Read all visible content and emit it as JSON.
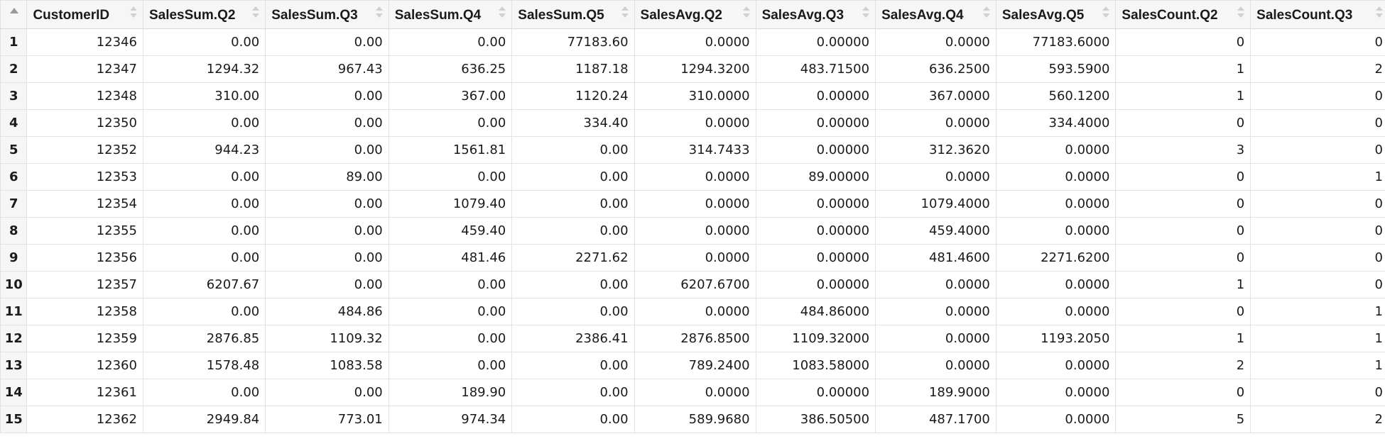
{
  "columns": [
    "CustomerID",
    "SalesSum.Q2",
    "SalesSum.Q3",
    "SalesSum.Q4",
    "SalesSum.Q5",
    "SalesAvg.Q2",
    "SalesAvg.Q3",
    "SalesAvg.Q4",
    "SalesAvg.Q5",
    "SalesCount.Q2",
    "SalesCount.Q3"
  ],
  "rows": [
    {
      "n": "1",
      "cells": [
        "12346",
        "0.00",
        "0.00",
        "0.00",
        "77183.60",
        "0.0000",
        "0.00000",
        "0.0000",
        "77183.6000",
        "0",
        "0"
      ]
    },
    {
      "n": "2",
      "cells": [
        "12347",
        "1294.32",
        "967.43",
        "636.25",
        "1187.18",
        "1294.3200",
        "483.71500",
        "636.2500",
        "593.5900",
        "1",
        "2"
      ]
    },
    {
      "n": "3",
      "cells": [
        "12348",
        "310.00",
        "0.00",
        "367.00",
        "1120.24",
        "310.0000",
        "0.00000",
        "367.0000",
        "560.1200",
        "1",
        "0"
      ]
    },
    {
      "n": "4",
      "cells": [
        "12350",
        "0.00",
        "0.00",
        "0.00",
        "334.40",
        "0.0000",
        "0.00000",
        "0.0000",
        "334.4000",
        "0",
        "0"
      ]
    },
    {
      "n": "5",
      "cells": [
        "12352",
        "944.23",
        "0.00",
        "1561.81",
        "0.00",
        "314.7433",
        "0.00000",
        "312.3620",
        "0.0000",
        "3",
        "0"
      ]
    },
    {
      "n": "6",
      "cells": [
        "12353",
        "0.00",
        "89.00",
        "0.00",
        "0.00",
        "0.0000",
        "89.00000",
        "0.0000",
        "0.0000",
        "0",
        "1"
      ]
    },
    {
      "n": "7",
      "cells": [
        "12354",
        "0.00",
        "0.00",
        "1079.40",
        "0.00",
        "0.0000",
        "0.00000",
        "1079.4000",
        "0.0000",
        "0",
        "0"
      ]
    },
    {
      "n": "8",
      "cells": [
        "12355",
        "0.00",
        "0.00",
        "459.40",
        "0.00",
        "0.0000",
        "0.00000",
        "459.4000",
        "0.0000",
        "0",
        "0"
      ]
    },
    {
      "n": "9",
      "cells": [
        "12356",
        "0.00",
        "0.00",
        "481.46",
        "2271.62",
        "0.0000",
        "0.00000",
        "481.4600",
        "2271.6200",
        "0",
        "0"
      ]
    },
    {
      "n": "10",
      "cells": [
        "12357",
        "6207.67",
        "0.00",
        "0.00",
        "0.00",
        "6207.6700",
        "0.00000",
        "0.0000",
        "0.0000",
        "1",
        "0"
      ]
    },
    {
      "n": "11",
      "cells": [
        "12358",
        "0.00",
        "484.86",
        "0.00",
        "0.00",
        "0.0000",
        "484.86000",
        "0.0000",
        "0.0000",
        "0",
        "1"
      ]
    },
    {
      "n": "12",
      "cells": [
        "12359",
        "2876.85",
        "1109.32",
        "0.00",
        "2386.41",
        "2876.8500",
        "1109.32000",
        "0.0000",
        "1193.2050",
        "1",
        "1"
      ]
    },
    {
      "n": "13",
      "cells": [
        "12360",
        "1578.48",
        "1083.58",
        "0.00",
        "0.00",
        "789.2400",
        "1083.58000",
        "0.0000",
        "0.0000",
        "2",
        "1"
      ]
    },
    {
      "n": "14",
      "cells": [
        "12361",
        "0.00",
        "0.00",
        "189.90",
        "0.00",
        "0.0000",
        "0.00000",
        "189.9000",
        "0.0000",
        "0",
        "0"
      ]
    },
    {
      "n": "15",
      "cells": [
        "12362",
        "2949.84",
        "773.01",
        "974.34",
        "0.00",
        "589.9680",
        "386.50500",
        "487.1700",
        "0.0000",
        "5",
        "2"
      ]
    }
  ],
  "icons": {
    "row_header_sort": "sort-ascending-icon",
    "column_sort": "sort-icon"
  }
}
